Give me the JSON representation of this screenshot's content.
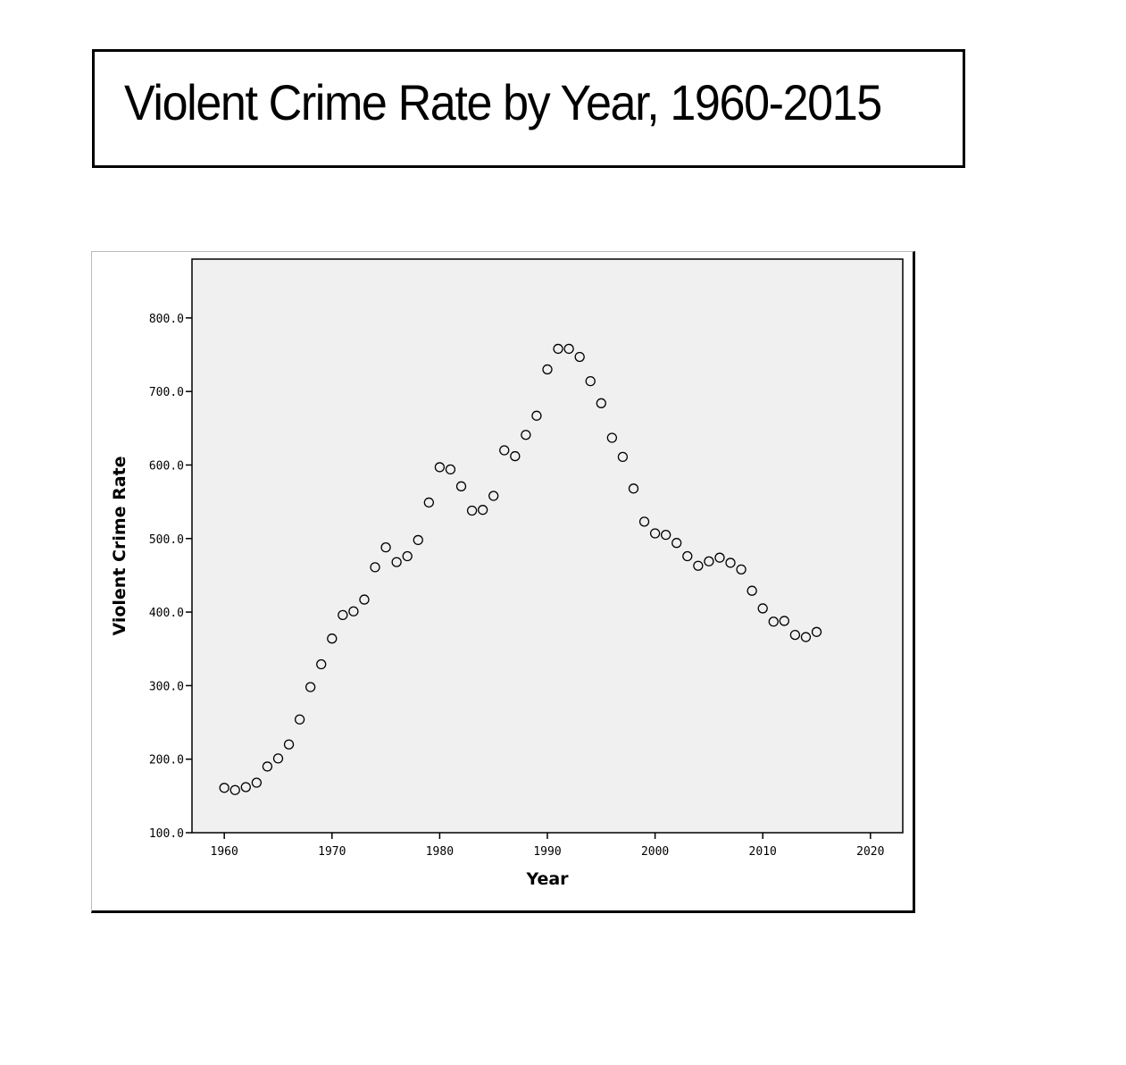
{
  "header": {
    "title": "Violent Crime Rate by Year, 1960-2015"
  },
  "chart_data": {
    "type": "scatter",
    "title": "Violent Crime Rate by Year, 1960-2015",
    "xlabel": "Year",
    "ylabel": "Violent Crime Rate",
    "xlim": [
      1957,
      2023
    ],
    "ylim": [
      100,
      880
    ],
    "xticks": [
      1960,
      1970,
      1980,
      1990,
      2000,
      2010,
      2020
    ],
    "xtick_labels": [
      "1960",
      "1970",
      "1980",
      "1990",
      "2000",
      "2010",
      "2020"
    ],
    "yticks": [
      100,
      200,
      300,
      400,
      500,
      600,
      700,
      800
    ],
    "ytick_labels": [
      "100.0",
      "200.0",
      "300.0",
      "400.0",
      "500.0",
      "600.0",
      "700.0",
      "800.0"
    ],
    "grid": false,
    "marker": "open-circle",
    "plot_background": "#f0f0f0",
    "series": [
      {
        "x": [
          1960,
          1961,
          1962,
          1963,
          1964,
          1965,
          1966,
          1967,
          1968,
          1969,
          1970,
          1971,
          1972,
          1973,
          1974,
          1975,
          1976,
          1977,
          1978,
          1979,
          1980,
          1981,
          1982,
          1983,
          1984,
          1985,
          1986,
          1987,
          1988,
          1989,
          1990,
          1991,
          1992,
          1993,
          1994,
          1995,
          1996,
          1997,
          1998,
          1999,
          2000,
          2001,
          2002,
          2003,
          2004,
          2005,
          2006,
          2007,
          2008,
          2009,
          2010,
          2011,
          2012,
          2013,
          2014,
          2015
        ],
        "y": [
          161,
          158,
          162,
          168,
          190,
          201,
          220,
          254,
          298,
          329,
          364,
          396,
          401,
          417,
          461,
          488,
          468,
          476,
          498,
          549,
          597,
          594,
          571,
          538,
          539,
          558,
          620,
          612,
          641,
          667,
          730,
          758,
          758,
          747,
          714,
          684,
          637,
          611,
          568,
          523,
          507,
          505,
          494,
          476,
          463,
          469,
          474,
          467,
          458,
          429,
          405,
          387,
          388,
          369,
          366,
          373
        ]
      }
    ]
  }
}
